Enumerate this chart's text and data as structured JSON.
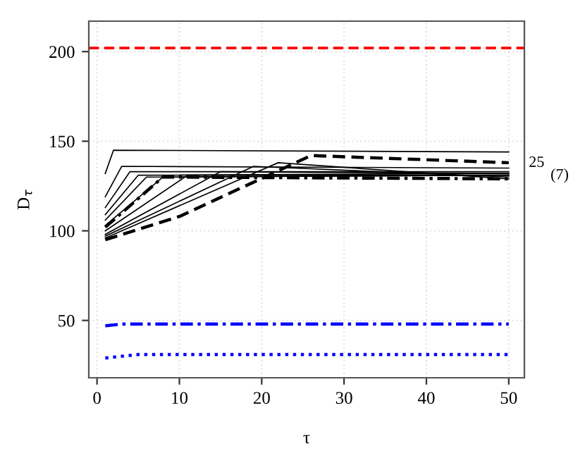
{
  "chart_data": {
    "type": "line",
    "xlabel": "τ",
    "ylabel": "D$_{τ}$",
    "xlim": [
      -1,
      51.9
    ],
    "ylim": [
      18,
      217
    ],
    "xticks": [
      0,
      10,
      20,
      30,
      40,
      50
    ],
    "yticks": [
      50,
      100,
      150,
      200
    ],
    "grid": true,
    "marker": "none",
    "series": [
      {
        "color": "#000000",
        "line_style": "solid",
        "x": [
          1,
          2,
          50
        ],
        "values": [
          132,
          145,
          144
        ]
      },
      {
        "color": "#000000",
        "line_style": "solid",
        "x": [
          1,
          3,
          50
        ],
        "values": [
          119,
          136,
          135
        ]
      },
      {
        "color": "#000000",
        "line_style": "solid",
        "x": [
          1,
          4,
          50
        ],
        "values": [
          113,
          133,
          133
        ]
      },
      {
        "color": "#000000",
        "line_style": "solid",
        "x": [
          1,
          5,
          50
        ],
        "values": [
          109,
          131,
          132
        ]
      },
      {
        "color": "#000000",
        "line_style": "solid",
        "x": [
          1,
          6,
          50
        ],
        "values": [
          106,
          130,
          131
        ]
      },
      {
        "color": "#000000",
        "line_style": "solid",
        "x": [
          1,
          8,
          50
        ],
        "values": [
          103,
          130,
          131
        ]
      },
      {
        "color": "#000000",
        "line_style": "solid",
        "x": [
          1,
          11,
          50
        ],
        "values": [
          100,
          131,
          131
        ]
      },
      {
        "color": "#000000",
        "line_style": "solid",
        "x": [
          1,
          15,
          50
        ],
        "values": [
          98,
          133,
          132
        ]
      },
      {
        "color": "#000000",
        "line_style": "solid",
        "x": [
          1,
          19,
          50
        ],
        "values": [
          97,
          136,
          130
        ]
      },
      {
        "color": "#000000",
        "line_style": "solid",
        "x": [
          1,
          22,
          50
        ],
        "values": [
          96,
          138,
          129
        ]
      },
      {
        "color": "#000000",
        "line_style": "dashed",
        "x": [
          1,
          10,
          26,
          50
        ],
        "values": [
          95,
          108,
          142,
          138
        ]
      },
      {
        "color": "#000000",
        "line_style": "dashdot",
        "x": [
          1,
          8,
          50
        ],
        "values": [
          102,
          130,
          129
        ]
      },
      {
        "color": "#0000ff",
        "line_style": "dashdot",
        "x": [
          1,
          3,
          50
        ],
        "values": [
          47,
          48,
          48
        ]
      },
      {
        "color": "#0000ff",
        "line_style": "dotted",
        "x": [
          1,
          5,
          50
        ],
        "values": [
          29,
          31,
          31
        ]
      }
    ],
    "ref_lines": [
      {
        "axis": "y",
        "value": 202,
        "color": "#ff0000",
        "line_style": "dashed"
      }
    ],
    "annotations": [
      "25",
      "(7)"
    ]
  }
}
